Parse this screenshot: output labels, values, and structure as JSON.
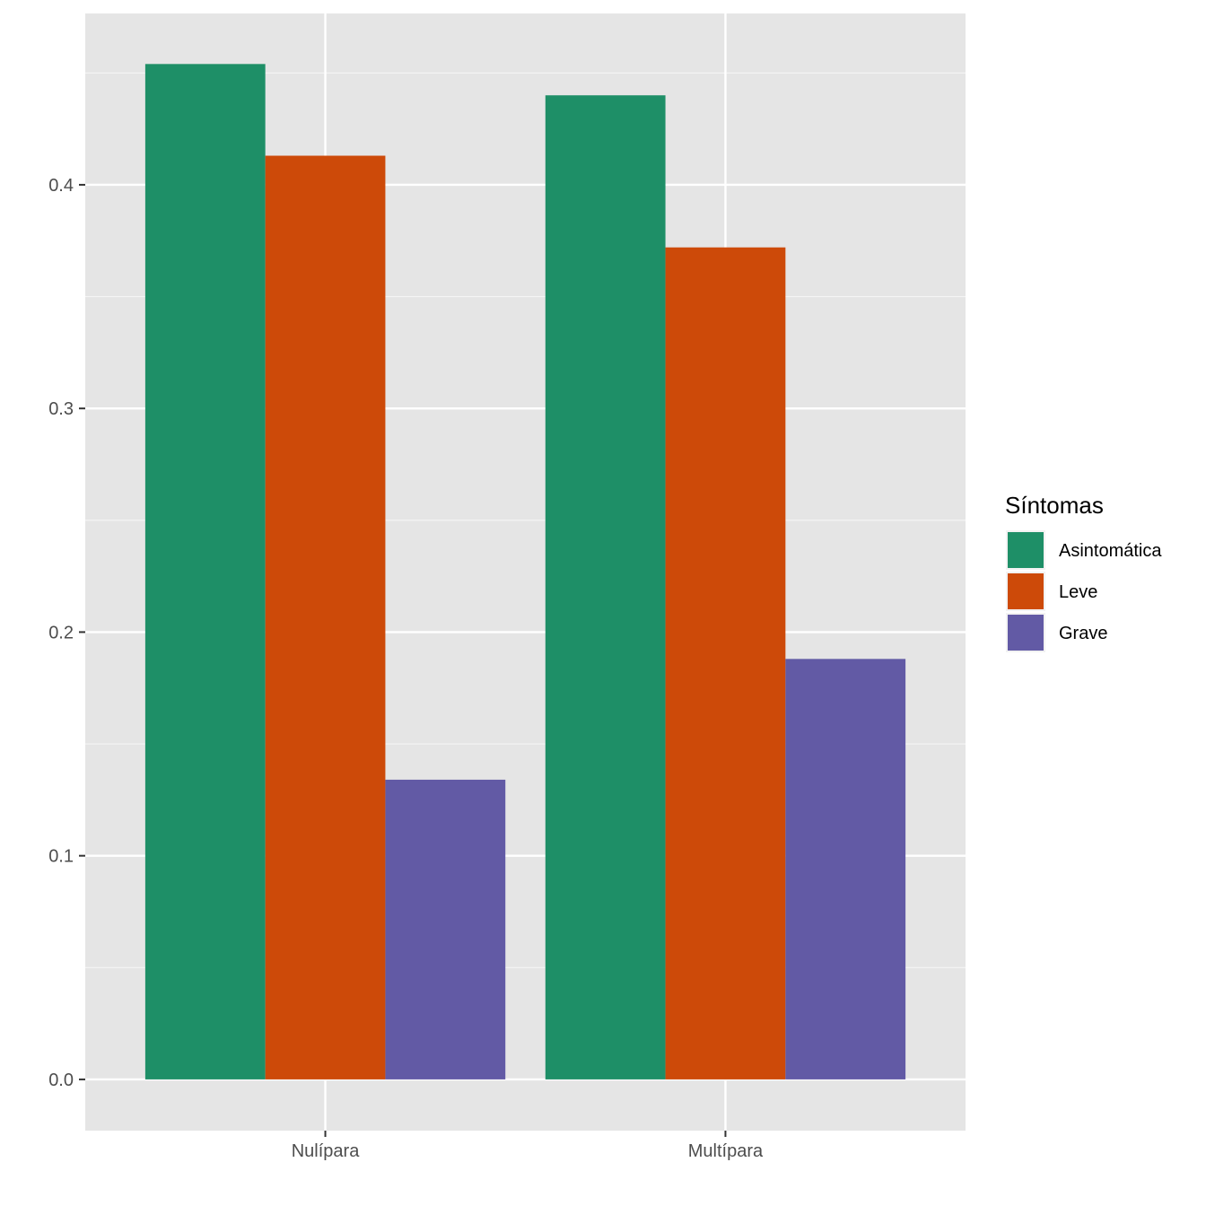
{
  "chart_data": {
    "type": "bar",
    "title": "",
    "xlabel": "",
    "ylabel": "",
    "categories": [
      "Nulípara",
      "Multípara"
    ],
    "series": [
      {
        "name": "Asintomática",
        "color": "#1B9E77",
        "values": [
          0.454,
          0.44
        ]
      },
      {
        "name": "Leve",
        "color": "#D95F02",
        "values": [
          0.413,
          0.372
        ]
      },
      {
        "name": "Grave",
        "color": "#7570B3",
        "values": [
          0.134,
          0.188
        ]
      }
    ],
    "ylim": [
      -0.0229,
      0.4766
    ],
    "yticks": [
      0.0,
      0.1,
      0.2,
      0.3,
      0.4
    ],
    "ytick_labels": [
      "0.0",
      "0.1",
      "0.2",
      "0.3",
      "0.4"
    ],
    "grid": true,
    "legend": {
      "title": "Síntomas",
      "position": "right"
    },
    "colors": {
      "panel": "#E5E5E5",
      "grid": "#FFFFFF",
      "bar_asintomatica": "#1E8F67",
      "bar_leve": "#CD4A09",
      "bar_grave": "#625AA5"
    }
  }
}
